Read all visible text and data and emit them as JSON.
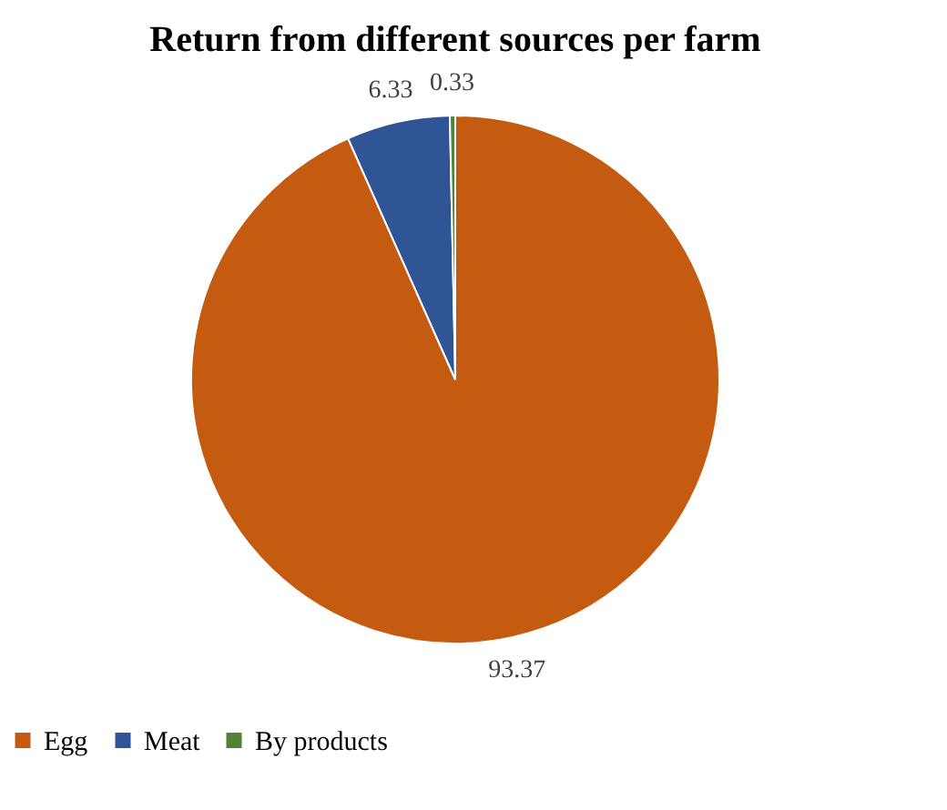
{
  "chart_data": {
    "type": "pie",
    "title": "Return from different sources per farm",
    "categories": [
      "Egg",
      "Meat",
      "By products"
    ],
    "values": [
      93.37,
      6.33,
      0.33
    ],
    "colors": [
      "#c55a11",
      "#2f5597",
      "#548235"
    ],
    "data_labels": true,
    "legend": "bottom"
  }
}
